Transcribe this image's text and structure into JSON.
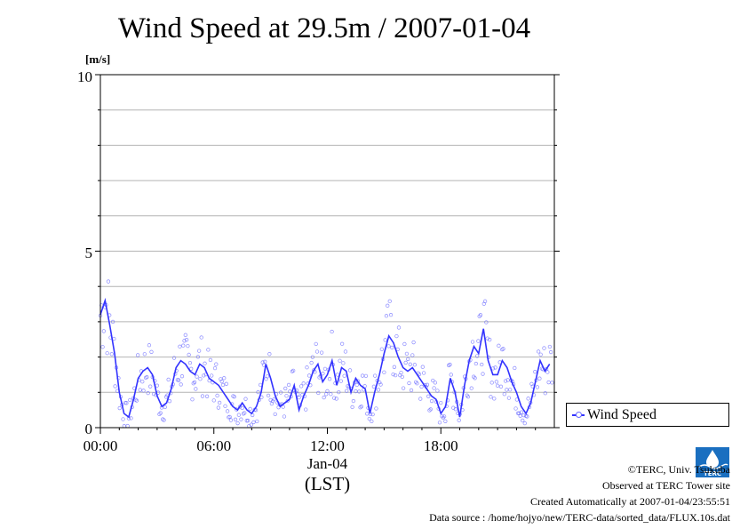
{
  "header": {
    "title": "Wind Speed at 29.5m / 2007-01-04"
  },
  "footer": {
    "copyright": "©TERC, Univ. Tsukuba",
    "observed": "Observed at TERC Tower site",
    "created": "Created Automatically at 2007-01-04/23:55:51",
    "source": "Data source : /home/hojyo/new/TERC-data/sorted_data/FLUX.10s.dat"
  },
  "logo": {
    "text": "TERC"
  },
  "colors": {
    "line": "#3333ff",
    "points": "#6666ff",
    "grid": "#b4b4b4"
  },
  "chart_data": {
    "type": "line",
    "title": "Wind Speed at 29.5m / 2007-01-04",
    "ylabel": "[m/s]",
    "ylim": [
      0,
      10
    ],
    "y_ticks": [
      "0",
      "5",
      "10"
    ],
    "xlim_hours": [
      0,
      24
    ],
    "x_ticks": [
      "00:00",
      "06:00",
      "12:00",
      "18:00"
    ],
    "x_date_label": "Jan-04",
    "x_unit_label": "(LST)",
    "grid": true,
    "legend": "outside-right",
    "series": [
      {
        "name": "Wind Speed",
        "hours": [
          0.0,
          0.25,
          0.5,
          0.75,
          1.0,
          1.25,
          1.5,
          1.75,
          2.0,
          2.25,
          2.5,
          2.75,
          3.0,
          3.25,
          3.5,
          3.75,
          4.0,
          4.25,
          4.5,
          4.75,
          5.0,
          5.25,
          5.5,
          5.75,
          6.0,
          6.25,
          6.5,
          6.75,
          7.0,
          7.25,
          7.5,
          7.75,
          8.0,
          8.25,
          8.5,
          8.75,
          9.0,
          9.25,
          9.5,
          9.75,
          10.0,
          10.25,
          10.5,
          10.75,
          11.0,
          11.25,
          11.5,
          11.75,
          12.0,
          12.25,
          12.5,
          12.75,
          13.0,
          13.25,
          13.5,
          13.75,
          14.0,
          14.25,
          14.5,
          14.75,
          15.0,
          15.25,
          15.5,
          15.75,
          16.0,
          16.25,
          16.5,
          16.75,
          17.0,
          17.25,
          17.5,
          17.75,
          18.0,
          18.25,
          18.5,
          18.75,
          19.0,
          19.25,
          19.5,
          19.75,
          20.0,
          20.25,
          20.5,
          20.75,
          21.0,
          21.25,
          21.5,
          21.75,
          22.0,
          22.25,
          22.5,
          22.75,
          23.0,
          23.25,
          23.5,
          23.75
        ],
        "values": [
          3.2,
          3.6,
          2.9,
          2.1,
          1.0,
          0.4,
          0.3,
          0.8,
          1.4,
          1.6,
          1.7,
          1.5,
          0.9,
          0.6,
          0.7,
          1.1,
          1.7,
          1.9,
          1.8,
          1.6,
          1.5,
          1.8,
          1.7,
          1.4,
          1.3,
          1.2,
          1.0,
          0.8,
          0.6,
          0.5,
          0.7,
          0.5,
          0.4,
          0.6,
          1.0,
          1.8,
          1.4,
          0.9,
          0.6,
          0.7,
          0.8,
          1.2,
          0.5,
          0.9,
          1.2,
          1.6,
          1.8,
          1.3,
          1.5,
          1.9,
          1.2,
          1.7,
          1.6,
          1.0,
          1.4,
          1.2,
          1.1,
          0.4,
          1.0,
          1.5,
          2.1,
          2.6,
          2.4,
          2.0,
          1.7,
          1.6,
          1.7,
          1.5,
          1.3,
          1.1,
          0.9,
          0.8,
          0.4,
          0.6,
          1.4,
          1.0,
          0.3,
          1.2,
          1.9,
          2.3,
          2.1,
          2.8,
          1.9,
          1.5,
          1.5,
          1.9,
          1.7,
          1.3,
          1.0,
          0.6,
          0.4,
          0.7,
          1.3,
          1.9,
          1.6,
          1.8
        ]
      }
    ]
  }
}
